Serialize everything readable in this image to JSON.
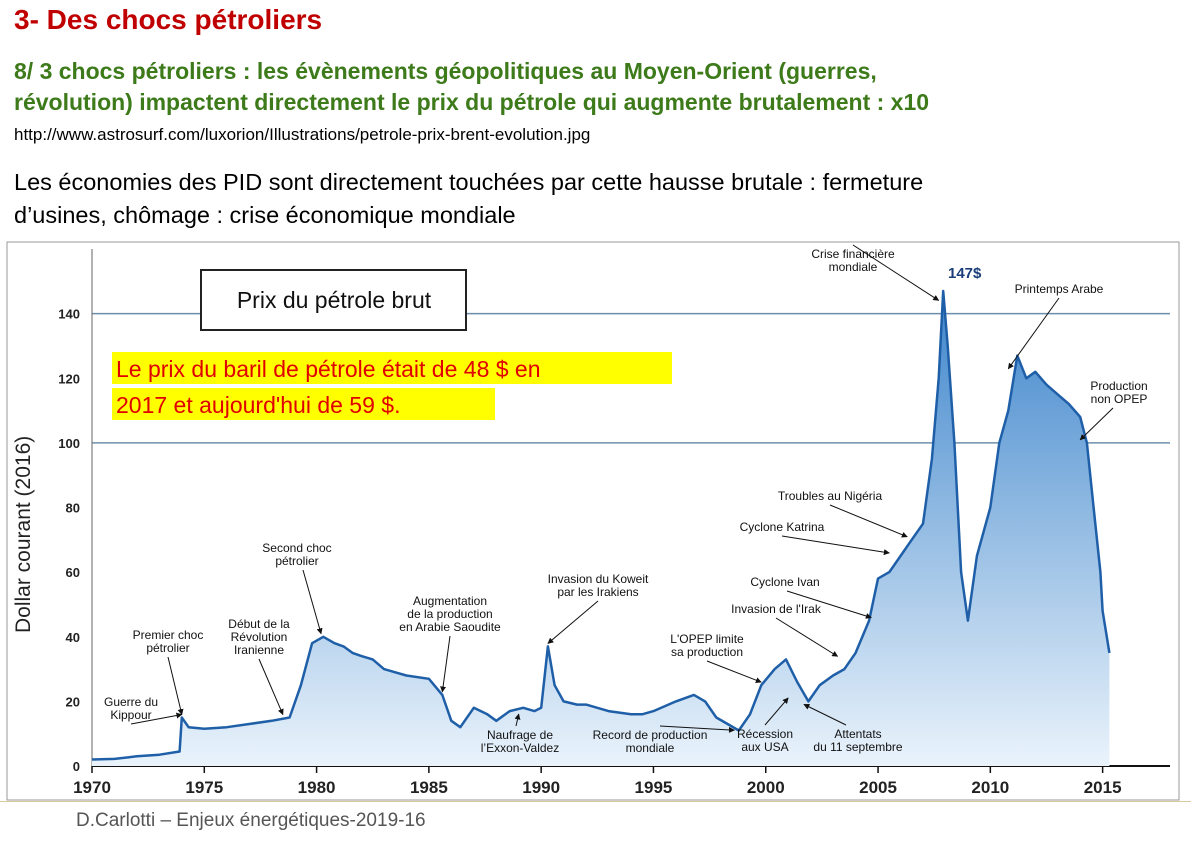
{
  "slide": {
    "title": "3- Des chocs pétroliers",
    "subtitle": [
      "8/ 3 chocs pétroliers : les évènements géopolitiques au Moyen-Orient (guerres,",
      "révolution) impactent directement le prix du pétrole qui augmente brutalement : x10"
    ],
    "source_url": "http://www.astrosurf.com/luxorion/Illustrations/petrole-prix-brent-evolution.jpg",
    "conclusion": [
      "Les économies des PID sont directement touchées par cette hausse brutale : fermeture",
      "d’usines, chômage : crise économique mondiale"
    ],
    "footer": "D.Carlotti – Enjeux énergétiques-2019-16"
  },
  "colors": {
    "title": "#c00000",
    "subtitle": "#3d7a1a",
    "line": "#1f5fa8",
    "note_bg": "#ffff00",
    "note_text": "#e00000"
  },
  "chart_data": {
    "type": "area",
    "title": "Prix du pétrole brut",
    "ylabel": "Dollar courant (2016)",
    "xlabel": "",
    "xlim": [
      1970,
      2018
    ],
    "ylim": [
      0,
      160
    ],
    "xticks": [
      1970,
      1975,
      1980,
      1985,
      1990,
      1995,
      2000,
      2005,
      2010,
      2015
    ],
    "yticks": [
      0,
      20,
      40,
      60,
      80,
      100,
      120,
      140
    ],
    "gridlines_y": [
      100,
      140
    ],
    "note": [
      "Le prix du baril de pétrole était de 48 $ en",
      "2017 et aujourd'hui de 59 $."
    ],
    "peak_label": "147$",
    "series": [
      {
        "x": [
          1970,
          1971,
          1972,
          1973,
          1973.9,
          1974.0,
          1974.3,
          1975,
          1976,
          1977,
          1978,
          1978.8,
          1979.3,
          1979.8,
          1980.3,
          1980.8,
          1981.2,
          1981.6,
          1982,
          1982.5,
          1983,
          1983.5,
          1984,
          1985,
          1985.6,
          1986.0,
          1986.4,
          1987,
          1987.6,
          1988,
          1988.6,
          1989.2,
          1989.7,
          1990.0,
          1990.3,
          1990.6,
          1991,
          1991.6,
          1992,
          1993,
          1994,
          1994.5,
          1995,
          1996,
          1996.8,
          1997.3,
          1997.8,
          1998.3,
          1998.8,
          1999.3,
          1999.8,
          2000.4,
          2000.9,
          2001.4,
          2001.9,
          2002.4,
          2003,
          2003.5,
          2004,
          2004.6,
          2005,
          2005.5,
          2006,
          2006.5,
          2007,
          2007.4,
          2007.7,
          2007.9,
          2008.1,
          2008.4,
          2008.7,
          2009,
          2009.4,
          2010,
          2010.4,
          2010.8,
          2011.2,
          2011.6,
          2012,
          2012.5,
          2013,
          2013.5,
          2014,
          2014.3,
          2014.6,
          2014.9,
          2015.0,
          2015.3
        ],
        "y": [
          2,
          2.2,
          3,
          3.5,
          4.5,
          15,
          12,
          11.5,
          12,
          13,
          14,
          15,
          25,
          38,
          40,
          38,
          37,
          35,
          34,
          33,
          30,
          29,
          28,
          27,
          22,
          14,
          12,
          18,
          16,
          14,
          17,
          18,
          17,
          18,
          37,
          25,
          20,
          19,
          19,
          17,
          16,
          16,
          17,
          20,
          22,
          20,
          15,
          13,
          11,
          16,
          25,
          30,
          33,
          26,
          20,
          25,
          28,
          30,
          35,
          45,
          58,
          60,
          65,
          70,
          75,
          95,
          120,
          147,
          130,
          100,
          60,
          45,
          65,
          80,
          100,
          110,
          127,
          120,
          122,
          118,
          115,
          112,
          108,
          100,
          80,
          60,
          48,
          35
        ]
      }
    ],
    "annotations": [
      {
        "text": [
          "Guerre du",
          "Kippour"
        ],
        "year": 1974.0,
        "value": 15
      },
      {
        "text": [
          "Premier choc",
          "pétrolier"
        ],
        "year": 1974.0,
        "value": 15
      },
      {
        "text": [
          "Début de la",
          "Révolution",
          "Iranienne"
        ],
        "year": 1978.5,
        "value": 15
      },
      {
        "text": [
          "Second choc",
          "pétrolier"
        ],
        "year": 1980.2,
        "value": 40
      },
      {
        "text": [
          "Augmentation",
          "de la production",
          "en Arabie Saoudite"
        ],
        "year": 1985.6,
        "value": 22
      },
      {
        "text": [
          "Naufrage de",
          "l’Exxon-Valdez"
        ],
        "year": 1989.0,
        "value": 17
      },
      {
        "text": [
          "Invasion du Koweit",
          "par les Irakiens"
        ],
        "year": 1990.3,
        "value": 37
      },
      {
        "text": [
          "Record de production",
          "mondiale"
        ],
        "year": 1998.6,
        "value": 12
      },
      {
        "text": [
          "L'OPEP limite",
          "sa production"
        ],
        "year": 1999.8,
        "value": 25
      },
      {
        "text": [
          "Récession",
          "aux USA"
        ],
        "year": 2001.0,
        "value": 22
      },
      {
        "text": [
          "Attentats",
          "du 11 septembre"
        ],
        "year": 2001.7,
        "value": 20
      },
      {
        "text": [
          "Invasion de l'Irak"
        ],
        "year": 2003.2,
        "value": 33
      },
      {
        "text": [
          "Cyclone Ivan"
        ],
        "year": 2004.7,
        "value": 45
      },
      {
        "text": [
          "Cyclone Katrina"
        ],
        "year": 2005.5,
        "value": 65
      },
      {
        "text": [
          "Troubles au Nigéria"
        ],
        "year": 2006.3,
        "value": 70
      },
      {
        "text": [
          "Crise financière",
          "mondiale"
        ],
        "year": 2007.7,
        "value": 145
      },
      {
        "text": [
          "Printemps Arabe"
        ],
        "year": 2010.8,
        "value": 122
      },
      {
        "text": [
          "Production",
          "non OPEP"
        ],
        "year": 2014.0,
        "value": 100
      }
    ]
  }
}
